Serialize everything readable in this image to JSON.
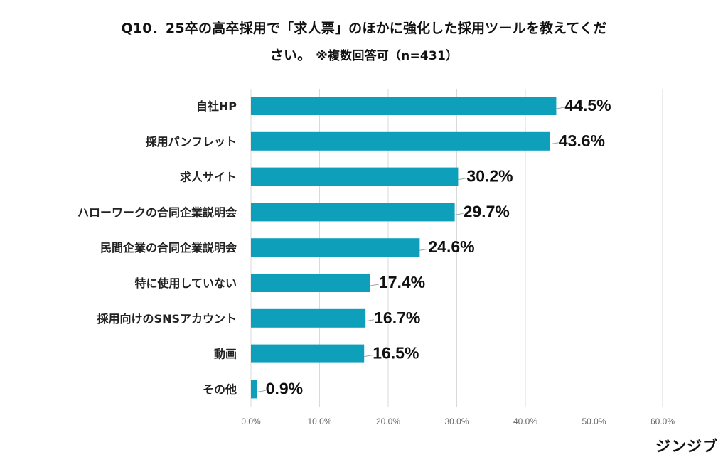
{
  "title_line1": "Q10．25卒の高卒採用で「求人票」のほかに強化した採用ツールを教えてくだ",
  "title_line2_main": "さい。",
  "title_line2_note": "※複数回答可（n=431）",
  "brand": "ジンジブ",
  "colors": {
    "bar": "#0e9fba",
    "grid": "#d9d9d9",
    "leader": "#9aa6ad"
  },
  "chart_data": {
    "type": "bar",
    "orientation": "horizontal",
    "categories": [
      "自社HP",
      "採用パンフレット",
      "求人サイト",
      "ハローワークの合同企業説明会",
      "民間企業の合同企業説明会",
      "特に使用していない",
      "採用向けのSNSアカウント",
      "動画",
      "その他"
    ],
    "values": [
      44.5,
      43.6,
      30.2,
      29.7,
      24.6,
      17.4,
      16.7,
      16.5,
      0.9
    ],
    "value_labels": [
      "44.5%",
      "43.6%",
      "30.2%",
      "29.7%",
      "24.6%",
      "17.4%",
      "16.7%",
      "16.5%",
      "0.9%"
    ],
    "xlim": [
      0,
      60
    ],
    "xticks": [
      0,
      10,
      20,
      30,
      40,
      50,
      60
    ],
    "xtick_labels": [
      "0.0%",
      "10.0%",
      "20.0%",
      "30.0%",
      "40.0%",
      "50.0%",
      "60.0%"
    ],
    "grid": true,
    "legend": "none"
  }
}
